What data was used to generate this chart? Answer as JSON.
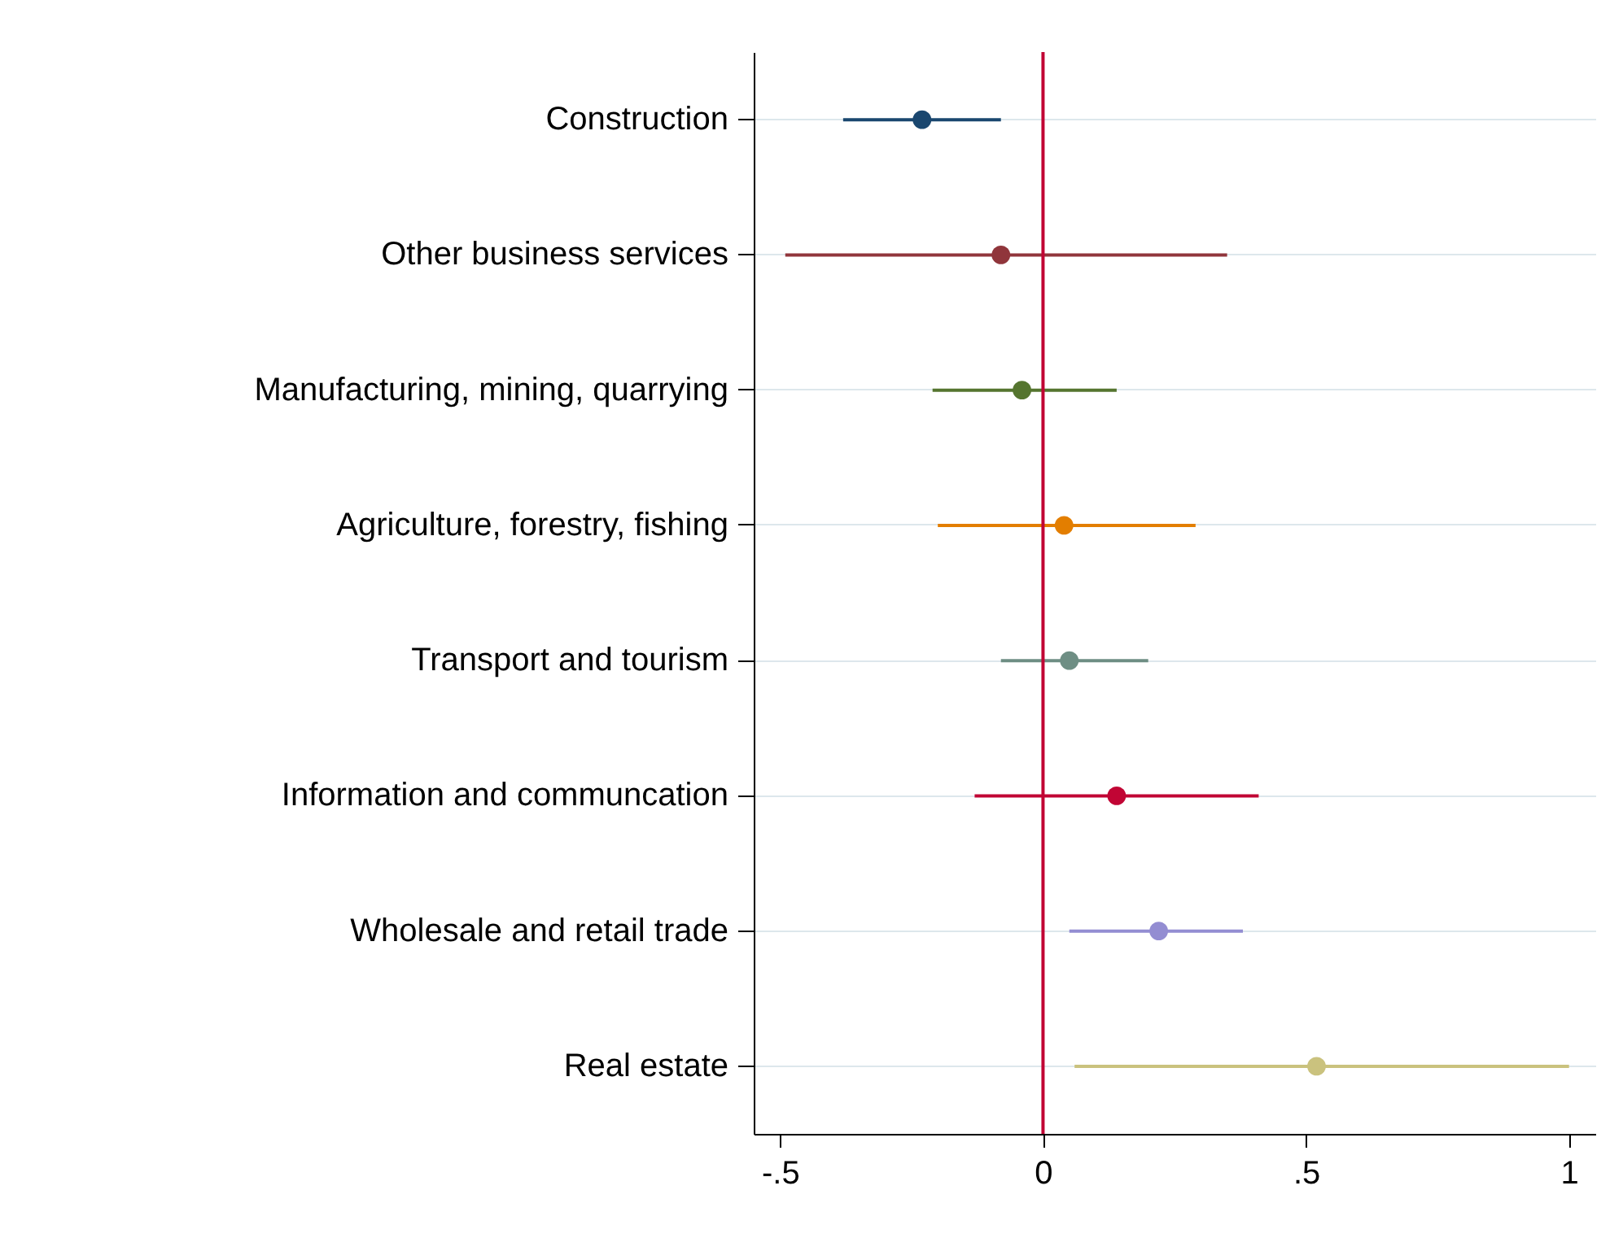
{
  "chart_data": {
    "type": "scatter",
    "orientation": "horizontal",
    "categories": [
      "Construction",
      "Other business services",
      "Manufacturing, mining, quarrying",
      "Agriculture, forestry, fishing",
      "Transport and tourism",
      "Information and communcation",
      "Wholesale and retail trade",
      "Real estate"
    ],
    "values": [
      -0.23,
      -0.08,
      -0.04,
      0.04,
      0.05,
      0.14,
      0.22,
      0.52
    ],
    "errors": [
      [
        -0.38,
        -0.08
      ],
      [
        -0.49,
        0.35
      ],
      [
        -0.21,
        0.14
      ],
      [
        -0.2,
        0.29
      ],
      [
        -0.08,
        0.2
      ],
      [
        -0.13,
        0.41
      ],
      [
        0.05,
        0.38
      ],
      [
        0.06,
        1.0
      ]
    ],
    "colors": [
      "#1a476f",
      "#90353b",
      "#55752f",
      "#e37e00",
      "#6e8e84",
      "#c10534",
      "#938dd2",
      "#cac27e"
    ],
    "xlim": [
      -0.55,
      1.05
    ],
    "xticks": [
      {
        "value": -0.5,
        "label": "-.5"
      },
      0,
      {
        "value": 0.5,
        "label": ".5"
      },
      1
    ],
    "ref_lines": [
      {
        "axis": "x",
        "value": 0,
        "color": "#c10534"
      }
    ],
    "grid": "y",
    "marker": "circle"
  }
}
